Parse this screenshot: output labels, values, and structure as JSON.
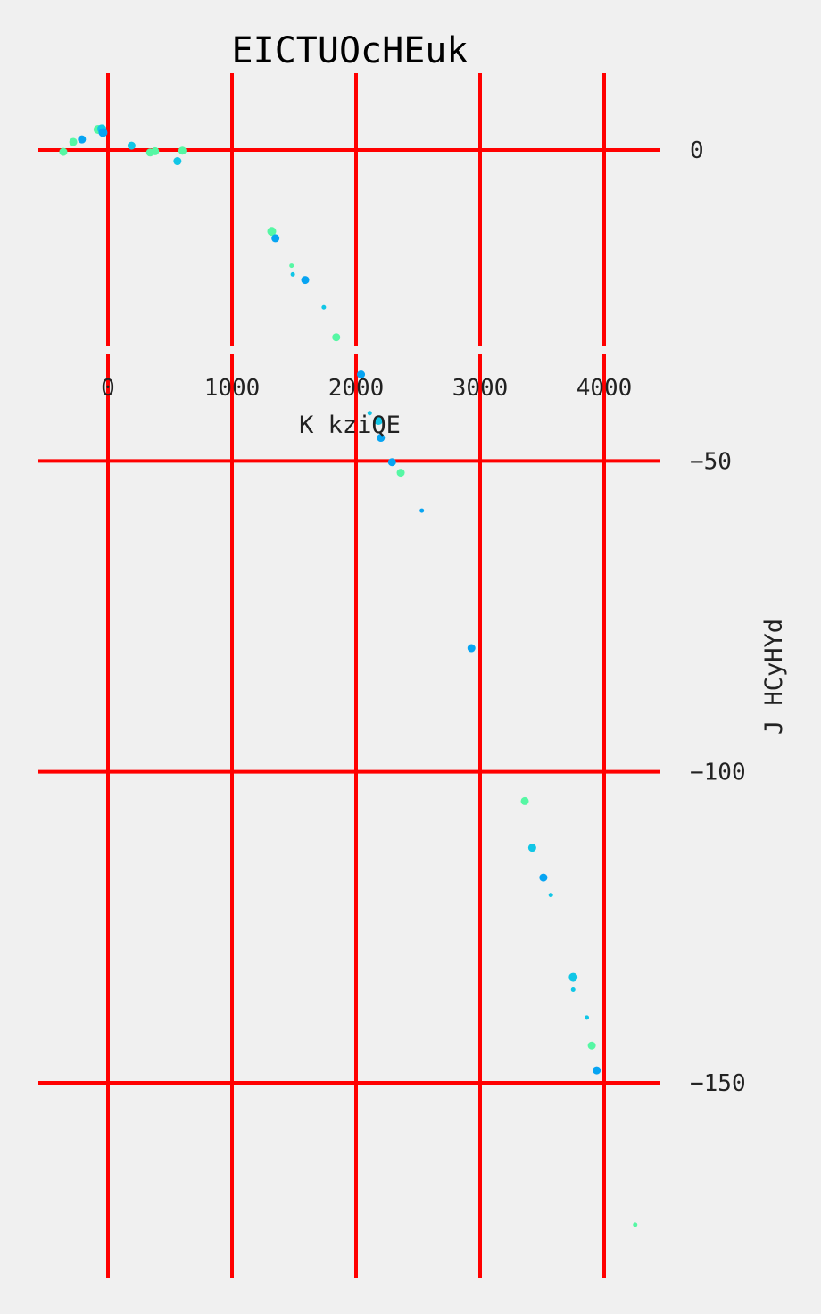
{
  "chart_data": {
    "type": "scatter",
    "title": "EICTUOcHEuk",
    "xlabel": "K  kziQE",
    "ylabel": "J HCyHYd",
    "xlim": [
      -560,
      4470
    ],
    "ylim": [
      -182,
      12
    ],
    "x_ticks": [
      {
        "value": 0,
        "label": "0"
      },
      {
        "value": 1000,
        "label": "1000"
      },
      {
        "value": 2000,
        "label": "2000"
      },
      {
        "value": 3000,
        "label": "3000"
      },
      {
        "value": 4000,
        "label": "4000"
      }
    ],
    "y_ticks": [
      {
        "value": 0,
        "label": "0"
      },
      {
        "value": -50,
        "label": "−50"
      },
      {
        "value": -100,
        "label": "−100"
      },
      {
        "value": -150,
        "label": "−150"
      }
    ],
    "grid": true,
    "grid_color": "#ff0000",
    "background_color": "#f0f0f0",
    "point_colors": [
      "#56f7a4",
      "#11c6e6",
      "#07a4f2"
    ],
    "points": [
      {
        "x": -360,
        "y": -0.3,
        "c": 0,
        "s": 4.5
      },
      {
        "x": -280,
        "y": 1.3,
        "c": 0,
        "s": 4.5
      },
      {
        "x": -210,
        "y": 1.7,
        "c": 2,
        "s": 4.5
      },
      {
        "x": -80,
        "y": 3.3,
        "c": 0,
        "s": 5
      },
      {
        "x": -50,
        "y": 3.4,
        "c": 1,
        "s": 5
      },
      {
        "x": -40,
        "y": 2.8,
        "c": 2,
        "s": 5
      },
      {
        "x": 190,
        "y": 0.7,
        "c": 1,
        "s": 4.5
      },
      {
        "x": 340,
        "y": -0.4,
        "c": 0,
        "s": 4.5
      },
      {
        "x": 380,
        "y": -0.2,
        "c": 0,
        "s": 4.5
      },
      {
        "x": 560,
        "y": -1.8,
        "c": 1,
        "s": 4.5
      },
      {
        "x": 600,
        "y": -0.1,
        "c": 0,
        "s": 4.5
      },
      {
        "x": 1320,
        "y": -13.1,
        "c": 0,
        "s": 5
      },
      {
        "x": 1350,
        "y": -14.2,
        "c": 2,
        "s": 4.5
      },
      {
        "x": 1480,
        "y": -18.6,
        "c": 0,
        "s": 2.5
      },
      {
        "x": 1490,
        "y": -20.0,
        "c": 1,
        "s": 2.5
      },
      {
        "x": 1590,
        "y": -20.9,
        "c": 2,
        "s": 4.5
      },
      {
        "x": 1740,
        "y": -25.3,
        "c": 1,
        "s": 2.5
      },
      {
        "x": 1840,
        "y": -30.1,
        "c": 0,
        "s": 4.5
      },
      {
        "x": 2040,
        "y": -36.1,
        "c": 2,
        "s": 4.5
      },
      {
        "x": 2110,
        "y": -42.3,
        "c": 1,
        "s": 2.5
      },
      {
        "x": 2180,
        "y": -43.5,
        "c": 1,
        "s": 5
      },
      {
        "x": 2200,
        "y": -46.3,
        "c": 2,
        "s": 4.5
      },
      {
        "x": 2290,
        "y": -50.2,
        "c": 2,
        "s": 4.5
      },
      {
        "x": 2360,
        "y": -51.9,
        "c": 0,
        "s": 4.5
      },
      {
        "x": 2530,
        "y": -58.0,
        "c": 2,
        "s": 2.5
      },
      {
        "x": 2930,
        "y": -80.1,
        "c": 2,
        "s": 4.5
      },
      {
        "x": 3360,
        "y": -104.7,
        "c": 0,
        "s": 4.5
      },
      {
        "x": 3420,
        "y": -112.2,
        "c": 1,
        "s": 4.5
      },
      {
        "x": 3510,
        "y": -117.0,
        "c": 2,
        "s": 4.5
      },
      {
        "x": 3570,
        "y": -119.8,
        "c": 1,
        "s": 2.5
      },
      {
        "x": 3750,
        "y": -133.0,
        "c": 1,
        "s": 5
      },
      {
        "x": 3750,
        "y": -135.0,
        "c": 1,
        "s": 2.5
      },
      {
        "x": 3860,
        "y": -139.5,
        "c": 1,
        "s": 2.5
      },
      {
        "x": 3900,
        "y": -144.0,
        "c": 0,
        "s": 4.5
      },
      {
        "x": 3940,
        "y": -148.0,
        "c": 2,
        "s": 4.5
      },
      {
        "x": 4250,
        "y": -172.8,
        "c": 0,
        "s": 2.5
      }
    ]
  }
}
